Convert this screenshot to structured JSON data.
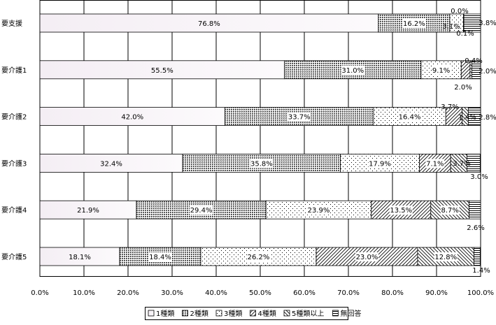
{
  "chart_data": {
    "type": "bar",
    "orientation": "horizontal",
    "stacked": true,
    "title": "",
    "categories": [
      "要支援",
      "要介護1",
      "要介護2",
      "要介護3",
      "要介護4",
      "要介護5"
    ],
    "series": [
      {
        "name": "1種類",
        "values": [
          76.8,
          55.5,
          42.0,
          32.4,
          21.9,
          18.1
        ]
      },
      {
        "name": "2種類",
        "values": [
          16.2,
          31.0,
          33.7,
          35.8,
          29.4,
          18.4
        ]
      },
      {
        "name": "3種類",
        "values": [
          3.1,
          9.1,
          16.4,
          17.9,
          23.9,
          26.2
        ]
      },
      {
        "name": "4種類",
        "values": [
          0.0,
          2.0,
          3.7,
          7.1,
          13.5,
          23.0
        ]
      },
      {
        "name": "5種類以上",
        "values": [
          0.1,
          0.4,
          1.4,
          3.7,
          8.7,
          12.8
        ]
      },
      {
        "name": "無回答",
        "values": [
          3.8,
          2.0,
          2.8,
          3.0,
          2.6,
          1.4
        ]
      }
    ],
    "xlim": [
      0,
      100
    ],
    "xticks": [
      "0.0%",
      "10.0%",
      "20.0%",
      "30.0%",
      "40.0%",
      "50.0%",
      "60.0%",
      "70.0%",
      "80.0%",
      "90.0%",
      "100.0%"
    ],
    "grid": "vertical",
    "legend": "bottom"
  }
}
